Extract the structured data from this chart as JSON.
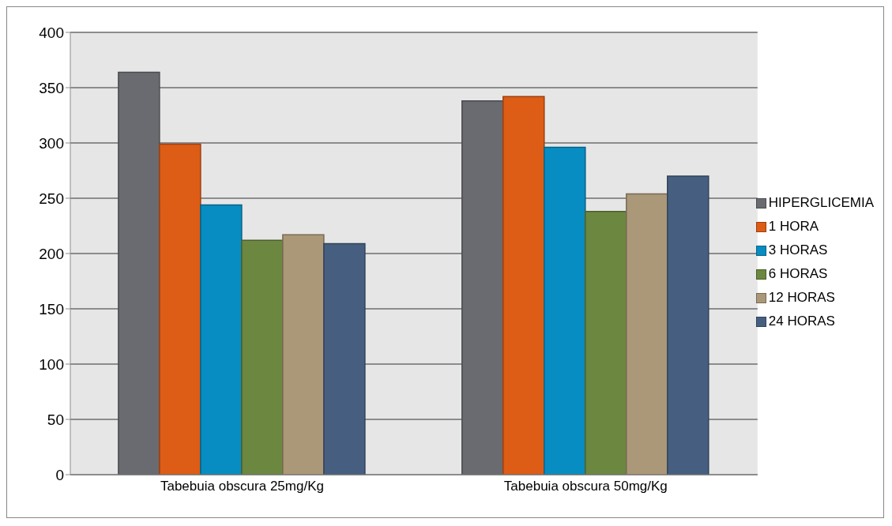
{
  "chart_data": {
    "type": "bar",
    "categories": [
      "Tabebuia obscura 25mg/Kg",
      "Tabebuia  obscura 50mg/Kg"
    ],
    "series": [
      {
        "name": "HIPERGLICEMIA",
        "color": "#6a6b70",
        "values": [
          364,
          338
        ]
      },
      {
        "name": "1 HORA",
        "color": "#dd5c16",
        "values": [
          299,
          342
        ]
      },
      {
        "name": "3 HORAS",
        "color": "#078dc1",
        "values": [
          244,
          296
        ]
      },
      {
        "name": "6 HORAS",
        "color": "#6c8740",
        "values": [
          212,
          238
        ]
      },
      {
        "name": "12 HORAS",
        "color": "#ab9878",
        "values": [
          217,
          254
        ]
      },
      {
        "name": "24 HORAS",
        "color": "#465f80",
        "values": [
          209,
          270
        ]
      }
    ],
    "ylim": [
      0,
      400
    ],
    "yticks": [
      0,
      50,
      100,
      150,
      200,
      250,
      300,
      350,
      400
    ],
    "grid": "y",
    "legend": "right"
  }
}
